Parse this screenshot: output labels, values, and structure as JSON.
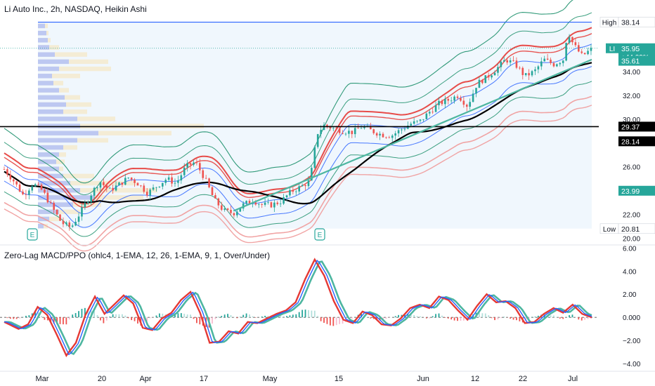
{
  "header": {
    "title": "Li Auto Inc., 2h, NASDAQ, Heikin Ashi"
  },
  "indicator": {
    "title": "Zero-Lag MACD/PPO (ohlc4, 1-EMA, 12, 26, 1-EMA, 9, 1, Over/Under)"
  },
  "colors": {
    "up": "#26a69a",
    "down": "#ef5350",
    "blue": "#2962ff",
    "red": "#e53935",
    "green": "#1b8f6a",
    "black": "#000000",
    "trend": "#4db6a0"
  },
  "chart_data": [
    {
      "type": "candlestick",
      "title": "Li Auto Inc., 2h, NASDAQ, Heikin Ashi",
      "price_axis": {
        "ticks": [
          "20.00",
          "22.00",
          "24.00",
          "26.00",
          "28.00",
          "30.00",
          "32.00",
          "34.00",
          "36.00",
          "38.00"
        ],
        "ylim": [
          19.5,
          40
        ]
      },
      "time_axis": {
        "ticks": [
          "Mar",
          "20",
          "Apr",
          "17",
          "May",
          "15",
          "Jun",
          "12",
          "22",
          "Jul"
        ]
      },
      "price_labels": [
        {
          "text": "High",
          "value": "38.14"
        },
        {
          "text": "LI",
          "value": "35.95",
          "sub": "+44.09%"
        },
        {
          "text": "",
          "value": "35.61"
        },
        {
          "text": "",
          "value": "29.37"
        },
        {
          "text": "",
          "value": "28.14"
        },
        {
          "text": "",
          "value": "23.99"
        },
        {
          "text": "Low",
          "value": "20.81"
        }
      ],
      "key_levels": {
        "high": 38.14,
        "low": 20.81,
        "last": 35.95,
        "poc": 29.37
      },
      "earnings_markers": [
        "E",
        "E"
      ],
      "price_path": [
        {
          "t": 0,
          "v": 25.8
        },
        {
          "t": 4,
          "v": 24.8
        },
        {
          "t": 8,
          "v": 23.6
        },
        {
          "t": 12,
          "v": 24.6
        },
        {
          "t": 16,
          "v": 24.0
        },
        {
          "t": 20,
          "v": 22.6
        },
        {
          "t": 24,
          "v": 21.3
        },
        {
          "t": 28,
          "v": 20.9
        },
        {
          "t": 32,
          "v": 22.2
        },
        {
          "t": 36,
          "v": 23.6
        },
        {
          "t": 40,
          "v": 24.8
        },
        {
          "t": 44,
          "v": 24.0
        },
        {
          "t": 48,
          "v": 24.5
        },
        {
          "t": 52,
          "v": 25.1
        },
        {
          "t": 56,
          "v": 24.6
        },
        {
          "t": 60,
          "v": 23.8
        },
        {
          "t": 64,
          "v": 24.4
        },
        {
          "t": 68,
          "v": 25.0
        },
        {
          "t": 72,
          "v": 24.6
        },
        {
          "t": 76,
          "v": 26.0
        },
        {
          "t": 80,
          "v": 26.4
        },
        {
          "t": 84,
          "v": 25.0
        },
        {
          "t": 88,
          "v": 23.2
        },
        {
          "t": 92,
          "v": 22.3
        },
        {
          "t": 96,
          "v": 22.1
        },
        {
          "t": 100,
          "v": 22.8
        },
        {
          "t": 104,
          "v": 23.2
        },
        {
          "t": 108,
          "v": 22.8
        },
        {
          "t": 112,
          "v": 22.8
        },
        {
          "t": 116,
          "v": 23.1
        },
        {
          "t": 120,
          "v": 23.9
        },
        {
          "t": 124,
          "v": 24.3
        },
        {
          "t": 128,
          "v": 24.8
        },
        {
          "t": 131,
          "v": 28.8
        },
        {
          "t": 134,
          "v": 29.5
        },
        {
          "t": 138,
          "v": 29.2
        },
        {
          "t": 142,
          "v": 29.0
        },
        {
          "t": 146,
          "v": 28.9
        },
        {
          "t": 150,
          "v": 29.4
        },
        {
          "t": 154,
          "v": 29.0
        },
        {
          "t": 158,
          "v": 28.7
        },
        {
          "t": 162,
          "v": 28.6
        },
        {
          "t": 166,
          "v": 29.1
        },
        {
          "t": 170,
          "v": 29.6
        },
        {
          "t": 174,
          "v": 29.8
        },
        {
          "t": 178,
          "v": 30.6
        },
        {
          "t": 182,
          "v": 31.3
        },
        {
          "t": 186,
          "v": 31.6
        },
        {
          "t": 190,
          "v": 32.0
        },
        {
          "t": 194,
          "v": 31.1
        },
        {
          "t": 198,
          "v": 33.0
        },
        {
          "t": 202,
          "v": 33.5
        },
        {
          "t": 206,
          "v": 34.2
        },
        {
          "t": 210,
          "v": 35.0
        },
        {
          "t": 214,
          "v": 34.6
        },
        {
          "t": 218,
          "v": 33.6
        },
        {
          "t": 222,
          "v": 34.0
        },
        {
          "t": 226,
          "v": 35.0
        },
        {
          "t": 230,
          "v": 34.6
        },
        {
          "t": 234,
          "v": 35.0
        },
        {
          "t": 236,
          "v": 37.4
        },
        {
          "t": 238,
          "v": 36.4
        },
        {
          "t": 240,
          "v": 35.8
        },
        {
          "t": 242,
          "v": 35.3
        },
        {
          "t": 244,
          "v": 35.6
        },
        {
          "t": 246,
          "v": 35.9
        }
      ],
      "volume_profile_left": [
        {
          "price": 37.8,
          "vol": 10,
          "total": 14
        },
        {
          "price": 37.2,
          "vol": 12,
          "total": 15
        },
        {
          "price": 36.6,
          "vol": 14,
          "total": 18
        },
        {
          "price": 36.0,
          "vol": 16,
          "total": 30
        },
        {
          "price": 35.4,
          "vol": 24,
          "total": 70
        },
        {
          "price": 34.8,
          "vol": 44,
          "total": 100
        },
        {
          "price": 34.2,
          "vol": 30,
          "total": 104
        },
        {
          "price": 33.6,
          "vol": 20,
          "total": 60
        },
        {
          "price": 33.0,
          "vol": 22,
          "total": 36
        },
        {
          "price": 32.4,
          "vol": 30,
          "total": 44
        },
        {
          "price": 31.8,
          "vol": 38,
          "total": 60
        },
        {
          "price": 31.2,
          "vol": 40,
          "total": 76
        },
        {
          "price": 30.6,
          "vol": 36,
          "total": 70
        },
        {
          "price": 30.0,
          "vol": 56,
          "total": 110
        },
        {
          "price": 29.4,
          "vol": 60,
          "total": 236
        },
        {
          "price": 28.8,
          "vol": 86,
          "total": 190
        },
        {
          "price": 28.2,
          "vol": 56,
          "total": 100
        },
        {
          "price": 27.6,
          "vol": 36,
          "total": 56
        },
        {
          "price": 27.0,
          "vol": 30,
          "total": 40
        },
        {
          "price": 26.4,
          "vol": 26,
          "total": 38
        },
        {
          "price": 25.8,
          "vol": 30,
          "total": 36
        },
        {
          "price": 25.2,
          "vol": 36,
          "total": 80
        },
        {
          "price": 24.6,
          "vol": 46,
          "total": 140
        },
        {
          "price": 24.0,
          "vol": 60,
          "total": 170
        },
        {
          "price": 23.4,
          "vol": 80,
          "total": 150
        },
        {
          "price": 22.8,
          "vol": 50,
          "total": 90
        },
        {
          "price": 22.2,
          "vol": 30,
          "total": 60
        },
        {
          "price": 21.6,
          "vol": 16,
          "total": 30
        },
        {
          "price": 21.0,
          "vol": 8,
          "total": 14
        }
      ]
    },
    {
      "type": "line",
      "title": "Zero-Lag MACD/PPO (ohlc4, 1-EMA, 12, 26, 1-EMA, 9, 1, Over/Under)",
      "y_axis": {
        "ticks": [
          "6.00",
          "4.00",
          "2.00",
          "0.000",
          "−2.00",
          "−4.00"
        ],
        "ylim": [
          -4.6,
          6.2
        ]
      },
      "macd_path": [
        {
          "t": 0,
          "v": -0.4
        },
        {
          "t": 6,
          "v": -1.0
        },
        {
          "t": 10,
          "v": -0.6
        },
        {
          "t": 14,
          "v": 0.9
        },
        {
          "t": 18,
          "v": 0.2
        },
        {
          "t": 22,
          "v": -1.5
        },
        {
          "t": 26,
          "v": -3.3
        },
        {
          "t": 30,
          "v": -2.2
        },
        {
          "t": 34,
          "v": 0.2
        },
        {
          "t": 38,
          "v": 1.8
        },
        {
          "t": 42,
          "v": 0.3
        },
        {
          "t": 46,
          "v": 1.1
        },
        {
          "t": 50,
          "v": 1.9
        },
        {
          "t": 54,
          "v": 1.2
        },
        {
          "t": 58,
          "v": -0.9
        },
        {
          "t": 62,
          "v": -1.1
        },
        {
          "t": 66,
          "v": -0.1
        },
        {
          "t": 70,
          "v": 0.4
        },
        {
          "t": 74,
          "v": 1.5
        },
        {
          "t": 78,
          "v": 2.2
        },
        {
          "t": 82,
          "v": 0.4
        },
        {
          "t": 86,
          "v": -2.2
        },
        {
          "t": 90,
          "v": -2.1
        },
        {
          "t": 94,
          "v": -1.2
        },
        {
          "t": 98,
          "v": -1.4
        },
        {
          "t": 102,
          "v": -0.4
        },
        {
          "t": 106,
          "v": -0.5
        },
        {
          "t": 110,
          "v": -0.1
        },
        {
          "t": 114,
          "v": 0.3
        },
        {
          "t": 118,
          "v": 0.6
        },
        {
          "t": 122,
          "v": 1.3
        },
        {
          "t": 126,
          "v": 3.3
        },
        {
          "t": 130,
          "v": 5.0
        },
        {
          "t": 134,
          "v": 3.6
        },
        {
          "t": 138,
          "v": 1.4
        },
        {
          "t": 142,
          "v": -0.2
        },
        {
          "t": 146,
          "v": -0.5
        },
        {
          "t": 150,
          "v": 0.5
        },
        {
          "t": 154,
          "v": 0.2
        },
        {
          "t": 158,
          "v": -0.6
        },
        {
          "t": 162,
          "v": -0.7
        },
        {
          "t": 166,
          "v": -0.1
        },
        {
          "t": 170,
          "v": 0.8
        },
        {
          "t": 174,
          "v": 1.1
        },
        {
          "t": 178,
          "v": 0.8
        },
        {
          "t": 182,
          "v": 1.8
        },
        {
          "t": 186,
          "v": 1.5
        },
        {
          "t": 190,
          "v": 0.6
        },
        {
          "t": 194,
          "v": -0.2
        },
        {
          "t": 198,
          "v": 1.0
        },
        {
          "t": 202,
          "v": 2.0
        },
        {
          "t": 206,
          "v": 1.3
        },
        {
          "t": 210,
          "v": 1.4
        },
        {
          "t": 214,
          "v": 0.8
        },
        {
          "t": 218,
          "v": -0.5
        },
        {
          "t": 222,
          "v": -0.4
        },
        {
          "t": 226,
          "v": 0.3
        },
        {
          "t": 230,
          "v": 0.8
        },
        {
          "t": 234,
          "v": 0.4
        },
        {
          "t": 238,
          "v": 1.1
        },
        {
          "t": 242,
          "v": 0.3
        },
        {
          "t": 246,
          "v": 0.0
        }
      ]
    }
  ]
}
